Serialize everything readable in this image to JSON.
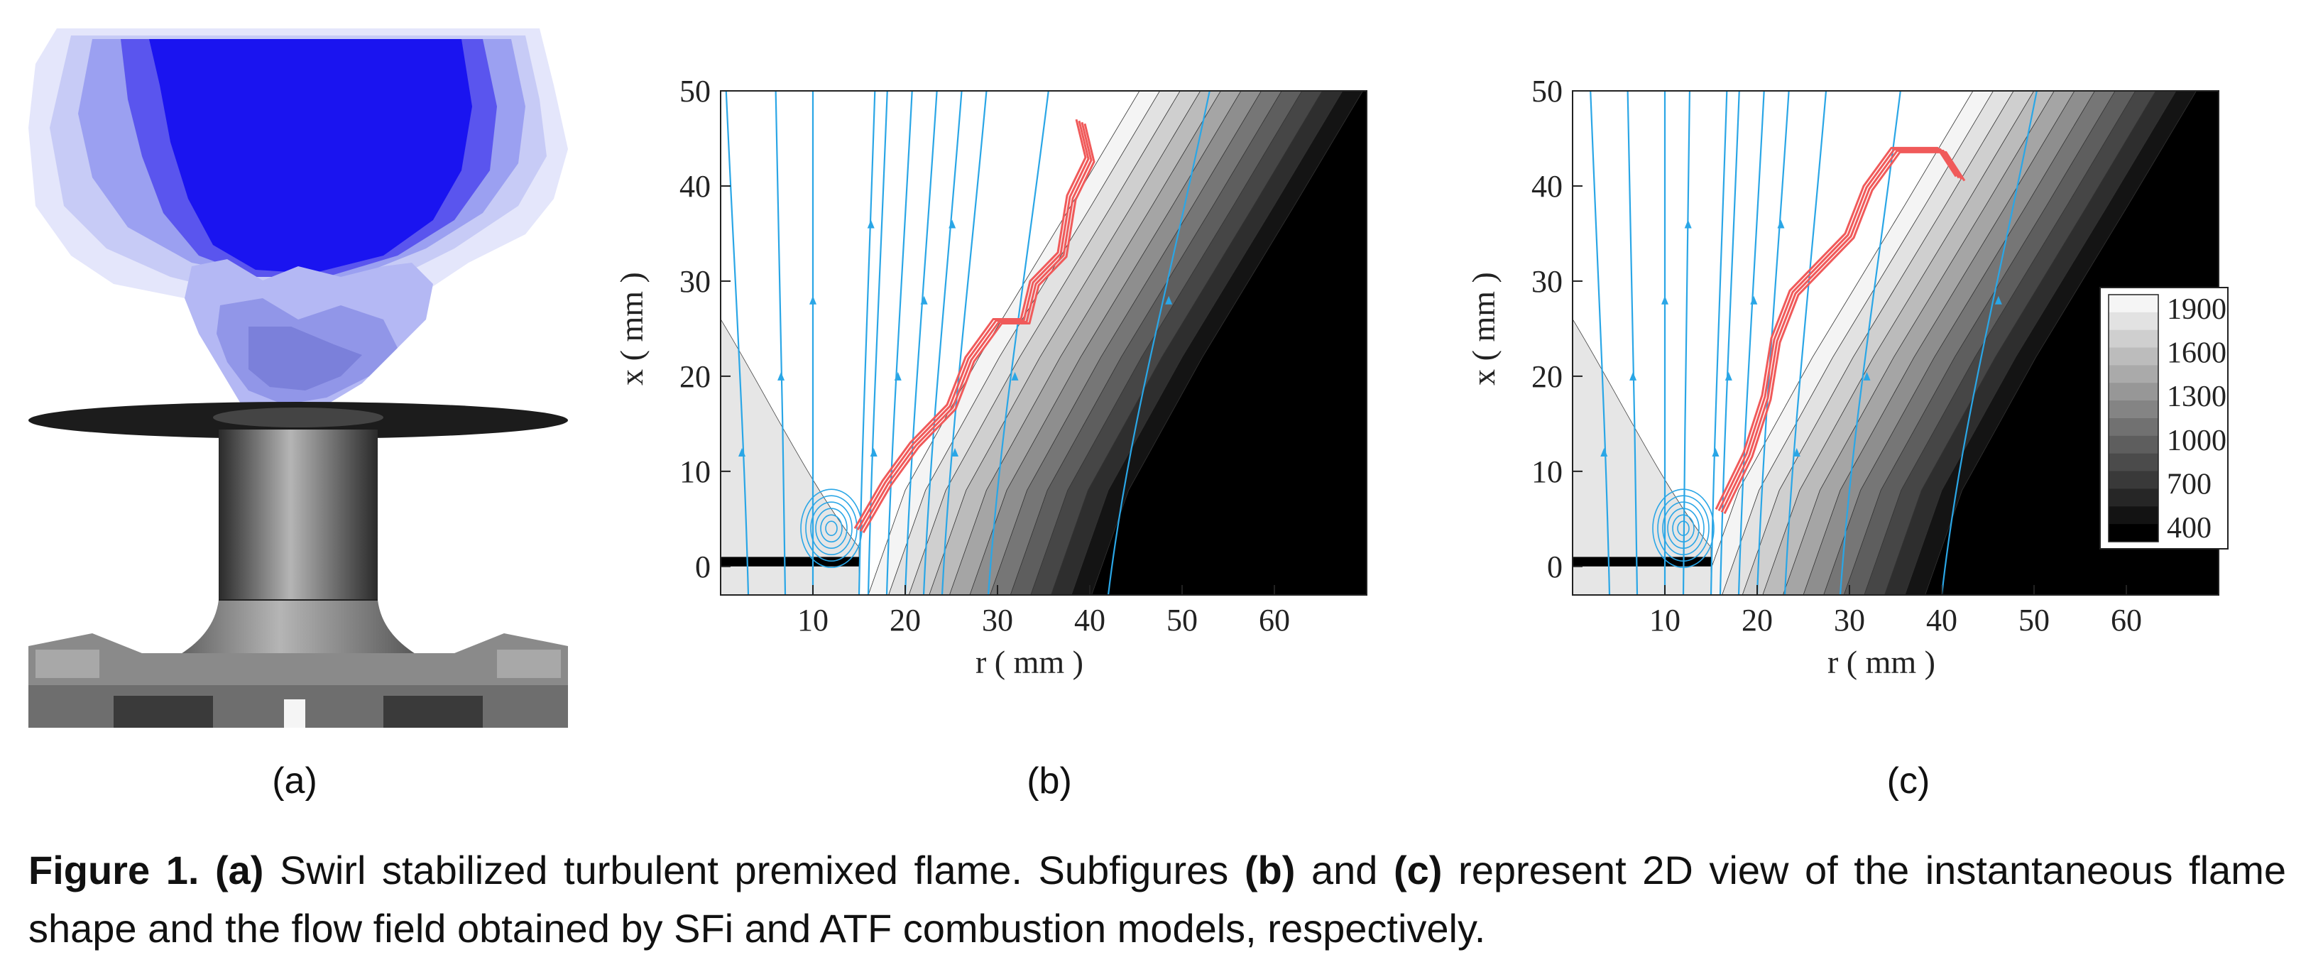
{
  "figure": {
    "subfig_labels": {
      "a": "(a)",
      "b": "(b)",
      "c": "(c)"
    },
    "caption": {
      "figure_label": "Figure 1.",
      "a_label": "(a)",
      "a_text": " Swirl stabilized turbulent premixed flame. Subfigures ",
      "b_label": "(b)",
      "and_text": " and ",
      "c_label": "(c)",
      "rest_text": " represent 2D view of the instantaneous flame shape and the flow field obtained by SFi and ATF combustion models, respectively."
    }
  },
  "colors": {
    "flame_blue": "#1a14f0",
    "flame_light": "#b4b8f4",
    "streamline": "#2aa6e6",
    "flame_contour": "#f05a5a",
    "burner_gray": "#555555"
  },
  "chart_data": [
    {
      "type": "contour",
      "panel": "b",
      "xlabel": "r ( mm )",
      "ylabel": "x ( mm )",
      "xticks": [
        "10",
        "20",
        "30",
        "40",
        "50",
        "60"
      ],
      "yticks": [
        "0",
        "10",
        "20",
        "30",
        "40",
        "50"
      ],
      "xlim": [
        0,
        70
      ],
      "ylim": [
        -3,
        50
      ],
      "flame_front": [
        [
          15,
          4
        ],
        [
          18,
          9
        ],
        [
          21,
          13
        ],
        [
          25,
          17
        ],
        [
          27,
          22
        ],
        [
          30,
          26
        ],
        [
          33,
          26
        ],
        [
          34,
          30
        ],
        [
          37,
          33
        ],
        [
          38,
          39
        ],
        [
          40,
          43
        ],
        [
          39,
          47
        ]
      ],
      "streamlines_x": [
        3,
        7,
        10,
        15,
        16,
        18,
        20,
        22,
        24,
        29,
        42
      ]
    },
    {
      "type": "contour",
      "panel": "c",
      "xlabel": "r ( mm )",
      "ylabel": "x ( mm )",
      "xticks": [
        "10",
        "20",
        "30",
        "40",
        "50",
        "60"
      ],
      "yticks": [
        "0",
        "10",
        "20",
        "30",
        "40",
        "50"
      ],
      "xlim": [
        0,
        70
      ],
      "ylim": [
        -3,
        50
      ],
      "flame_front": [
        [
          16,
          6
        ],
        [
          19,
          12
        ],
        [
          21,
          18
        ],
        [
          22,
          24
        ],
        [
          24,
          29
        ],
        [
          27,
          32
        ],
        [
          30,
          35
        ],
        [
          32,
          40
        ],
        [
          35,
          44
        ],
        [
          40,
          44
        ],
        [
          42,
          41
        ]
      ],
      "streamlines_x": [
        4,
        7,
        10,
        12,
        15,
        16,
        18,
        20,
        23,
        29,
        40
      ],
      "colorbar": {
        "labels": [
          "1900",
          "1600",
          "1300",
          "1000",
          "700",
          "400"
        ],
        "range": [
          400,
          2000
        ]
      }
    }
  ]
}
